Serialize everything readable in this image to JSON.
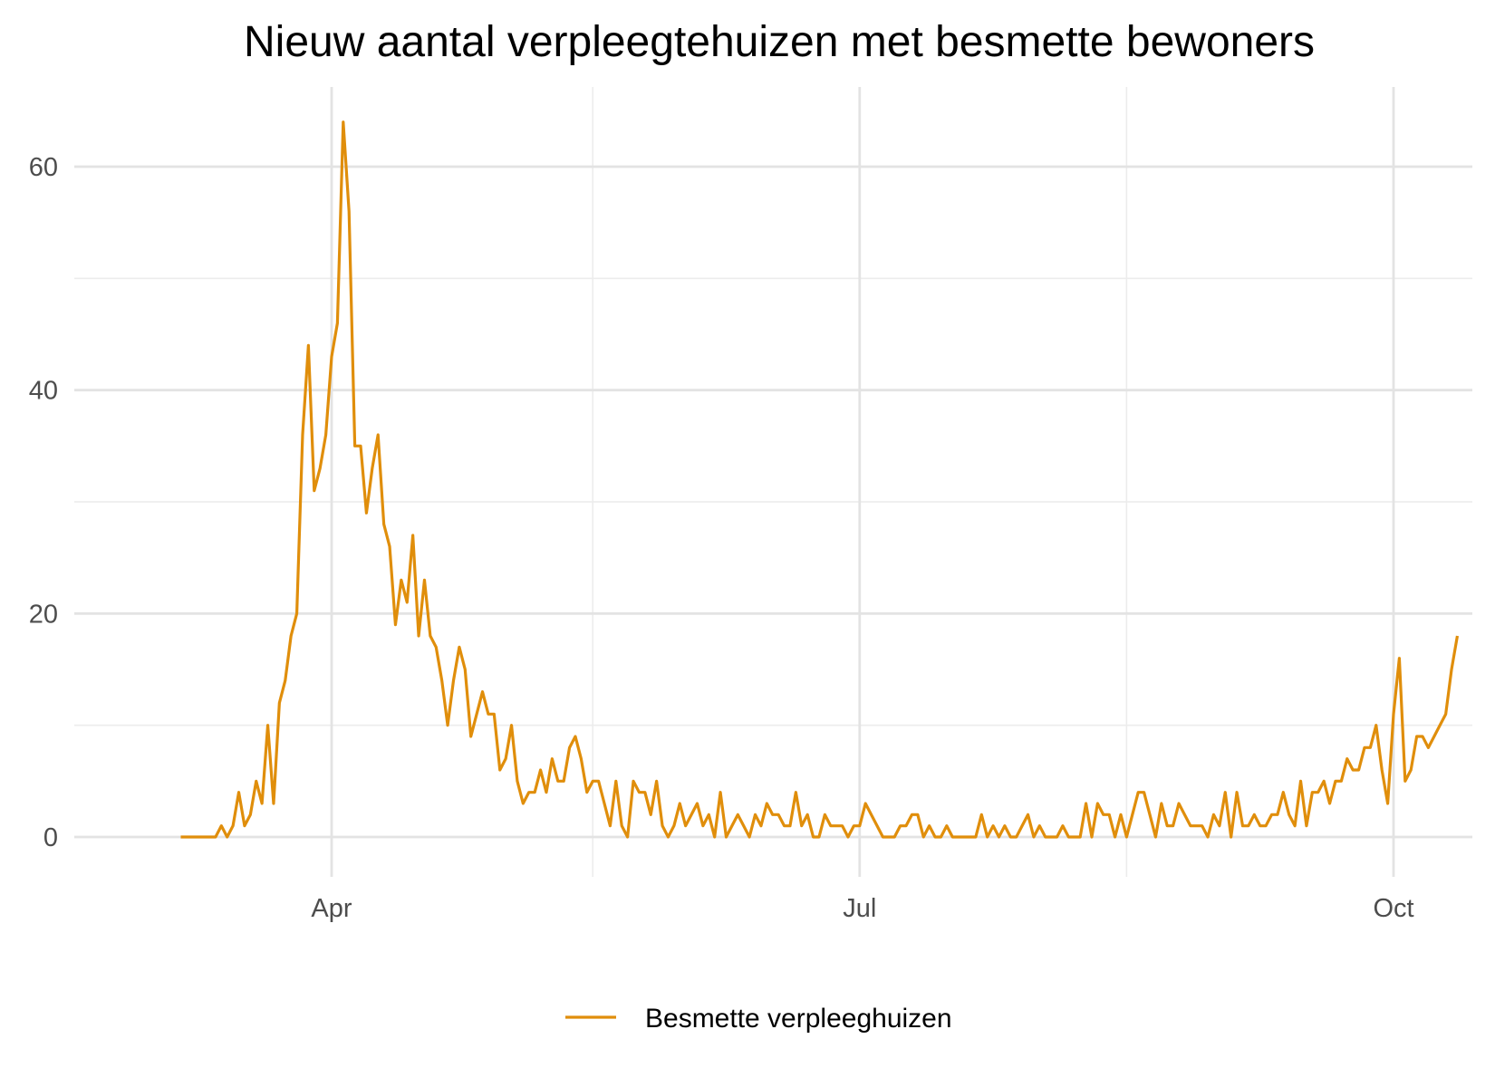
{
  "chart_data": {
    "type": "line",
    "title": "Nieuw aantal verpleegtehuizen met besmette bewoners",
    "xlabel": "",
    "ylabel": "",
    "x_start": "2020-03-06",
    "x_ticks": [
      {
        "date": "2020-04-01",
        "label": "Apr"
      },
      {
        "date": "2020-07-01",
        "label": "Jul"
      },
      {
        "date": "2020-10-01",
        "label": "Oct"
      }
    ],
    "x_minor_ticks": [
      "2020-05-16",
      "2020-08-16"
    ],
    "ylim": [
      -5.5,
      66
    ],
    "y_ticks": [
      0,
      20,
      40,
      60
    ],
    "y_minor_ticks": [
      10,
      30,
      50
    ],
    "grid": true,
    "legend_position": "bottom",
    "series": [
      {
        "name": "Besmette verpleeghuizen",
        "color": "#E08E0B",
        "values": [
          0,
          0,
          0,
          0,
          0,
          0,
          0,
          1,
          0,
          1,
          4,
          1,
          2,
          5,
          3,
          10,
          3,
          12,
          14,
          18,
          20,
          36,
          44,
          31,
          33,
          36,
          43,
          46,
          64,
          56,
          35,
          35,
          29,
          33,
          36,
          28,
          26,
          19,
          23,
          21,
          27,
          18,
          23,
          18,
          17,
          14,
          10,
          14,
          17,
          15,
          9,
          11,
          13,
          11,
          11,
          6,
          7,
          10,
          5,
          3,
          4,
          4,
          6,
          4,
          7,
          5,
          5,
          8,
          9,
          7,
          4,
          5,
          5,
          3,
          1,
          5,
          1,
          0,
          5,
          4,
          4,
          2,
          5,
          1,
          0,
          1,
          3,
          1,
          2,
          3,
          1,
          2,
          0,
          4,
          0,
          1,
          2,
          1,
          0,
          2,
          1,
          3,
          2,
          2,
          1,
          1,
          4,
          1,
          2,
          0,
          0,
          2,
          1,
          1,
          1,
          0,
          1,
          1,
          3,
          2,
          1,
          0,
          0,
          0,
          1,
          1,
          2,
          2,
          0,
          1,
          0,
          0,
          1,
          0,
          0,
          0,
          0,
          0,
          2,
          0,
          1,
          0,
          1,
          0,
          0,
          1,
          2,
          0,
          1,
          0,
          0,
          0,
          1,
          0,
          0,
          0,
          3,
          0,
          3,
          2,
          2,
          0,
          2,
          0,
          2,
          4,
          4,
          2,
          0,
          3,
          1,
          1,
          3,
          2,
          1,
          1,
          1,
          0,
          2,
          1,
          4,
          0,
          4,
          1,
          1,
          2,
          1,
          1,
          2,
          2,
          4,
          2,
          1,
          5,
          1,
          4,
          4,
          5,
          3,
          5,
          5,
          7,
          6,
          6,
          8,
          8,
          10,
          6,
          3,
          11,
          16,
          5,
          6,
          9,
          9,
          8,
          9,
          10,
          11,
          15,
          18
        ]
      }
    ]
  }
}
